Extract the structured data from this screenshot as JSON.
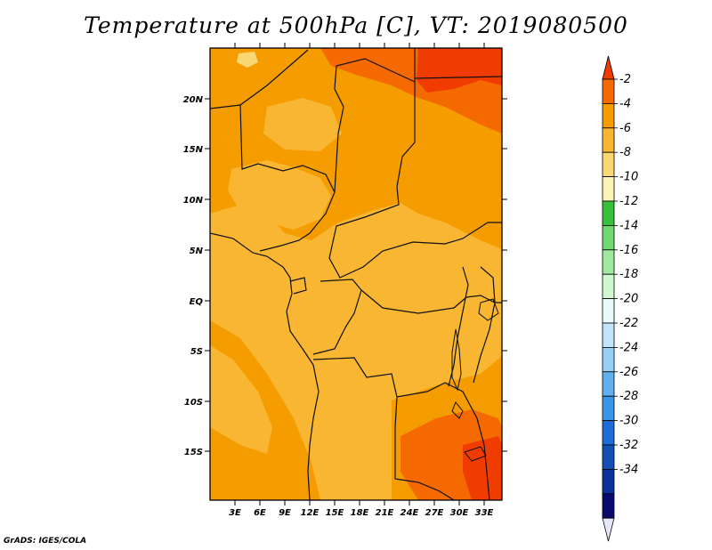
{
  "title": "Temperature at 500hPa [C], VT: 2019080500",
  "credit": "GrADS: IGES/COLA",
  "map": {
    "lat_labels": [
      "20N",
      "15N",
      "10N",
      "5N",
      "EQ",
      "5S",
      "10S",
      "15S"
    ],
    "lon_labels": [
      "3E",
      "6E",
      "9E",
      "12E",
      "15E",
      "18E",
      "21E",
      "24E",
      "27E",
      "30E",
      "33E"
    ]
  },
  "colorbar": {
    "labels": [
      "-2",
      "-4",
      "-6",
      "-8",
      "-10",
      "-12",
      "-14",
      "-16",
      "-18",
      "-20",
      "-22",
      "-24",
      "-26",
      "-28",
      "-30",
      "-32",
      "-34"
    ],
    "colors": [
      "#f03c00",
      "#f56a00",
      "#f59c00",
      "#f8b632",
      "#f9d774",
      "#fcf4b4",
      "#38c038",
      "#70d870",
      "#a0e8a0",
      "#d0f8d0",
      "#e8fafa",
      "#c0e4f8",
      "#96d0f4",
      "#60b0f0",
      "#3c96e8",
      "#1e6cd8",
      "#1450b4",
      "#0a329a",
      "#0a0a6e",
      "#e6e6fa"
    ]
  },
  "colors": {
    "field_background": "#f8b632",
    "warm_region": "#f59c00",
    "hot_region": "#f56a00",
    "hottest_region": "#f03c00",
    "pale_region": "#f9d774"
  }
}
